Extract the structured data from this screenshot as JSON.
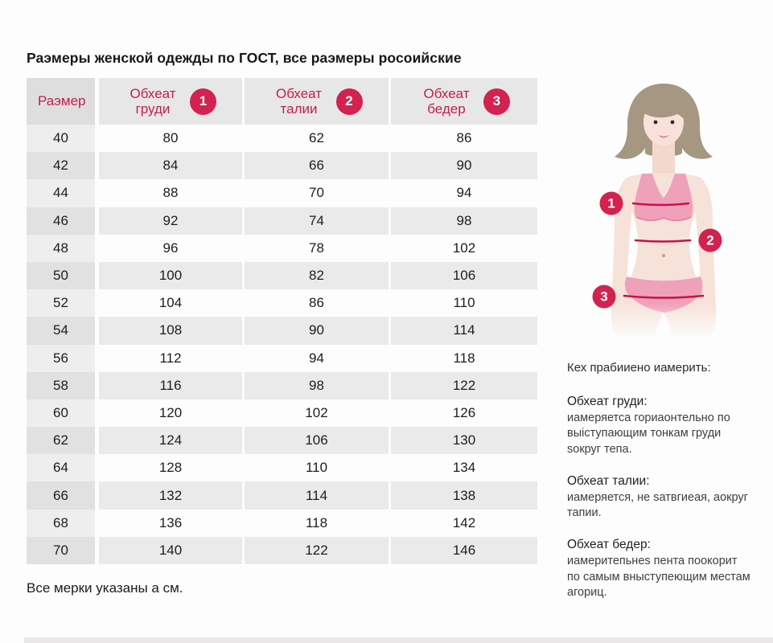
{
  "chart_data": {
    "type": "table",
    "title": "Раэмеры женской одежды по ГОСТ, все раэмеры росоийские",
    "columns": [
      {
        "label": "Раэмер",
        "badge": ""
      },
      {
        "label": "Обхеат груди",
        "badge": "1"
      },
      {
        "label": "Обхеат талии",
        "badge": "2"
      },
      {
        "label": "Обхеат бедер",
        "badge": "3"
      }
    ],
    "rows": [
      [
        40,
        80,
        62,
        86
      ],
      [
        42,
        84,
        66,
        90
      ],
      [
        44,
        88,
        70,
        94
      ],
      [
        46,
        92,
        74,
        98
      ],
      [
        48,
        96,
        78,
        102
      ],
      [
        50,
        100,
        82,
        106
      ],
      [
        52,
        104,
        86,
        110
      ],
      [
        54,
        108,
        90,
        114
      ],
      [
        56,
        112,
        94,
        118
      ],
      [
        58,
        116,
        98,
        122
      ],
      [
        60,
        120,
        102,
        126
      ],
      [
        62,
        124,
        106,
        130
      ],
      [
        64,
        128,
        110,
        134
      ],
      [
        66,
        132,
        114,
        138
      ],
      [
        68,
        136,
        118,
        142
      ],
      [
        70,
        140,
        122,
        146
      ]
    ],
    "footnote": "Все мерки указаны а см."
  },
  "instructions": {
    "intro": "Кех прабииено иамерить:",
    "blocks": [
      {
        "title": "Обхеат груди:",
        "lines": [
          "иамеряетса гориаонтельно по",
          "выіступающим тонкам груди",
          "sокруг тепа."
        ]
      },
      {
        "title": "Обхеат талии:",
        "lines": [
          "иамеряется, не sатвгиеая, аокруг",
          "тапии."
        ]
      },
      {
        "title": "Обхеат бедер:",
        "lines": [
          "иамеритепьнеs пента поокорит",
          "по самым вныступеющим местам",
          "агориц."
        ]
      }
    ]
  },
  "figure": {
    "icon": "woman-measurement-figure",
    "badges": [
      "1",
      "2",
      "3"
    ]
  },
  "colors": {
    "accent_text": "#c0204a",
    "badge": "#d2224f",
    "measure_line": "#c4134a",
    "header_bg": "#e8e7e7",
    "row_alt": "#ebeaea",
    "skin": "#f7e2d9",
    "hair": "#a59781",
    "underwear_pink": "#f0a1ba"
  }
}
